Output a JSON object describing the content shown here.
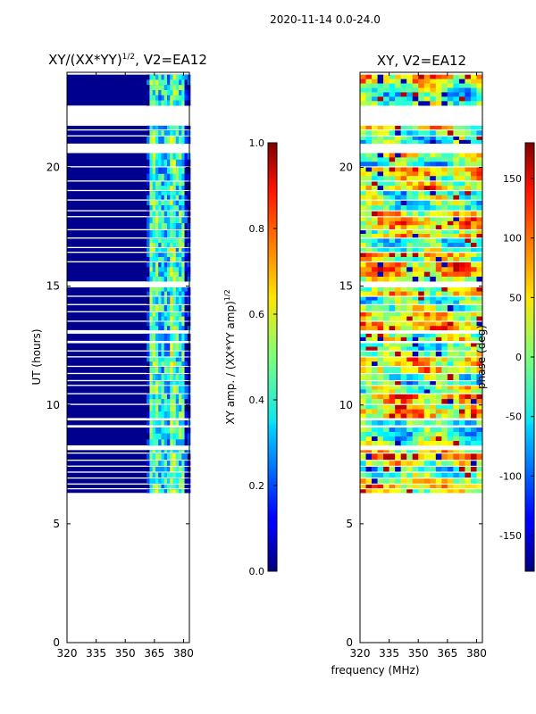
{
  "suptitle": "2020-11-14 0.0-24.0",
  "shared_xlabel": "frequency (MHz)",
  "chart_data": [
    {
      "type": "heatmap",
      "title": "XY/(XX*YY)",
      "title_exponent": "1/2",
      "title_suffix": ", V2=EA12",
      "ylabel": "UT (hours)",
      "xlim": [
        320,
        383
      ],
      "ylim": [
        0,
        24
      ],
      "xticks": [
        320,
        335,
        350,
        365,
        380
      ],
      "yticks": [
        0,
        5,
        10,
        15,
        20
      ],
      "data_rows": [
        {
          "t0": 6.3,
          "t1": 6.45
        },
        {
          "t0": 6.5,
          "t1": 6.65
        },
        {
          "t0": 6.7,
          "t1": 6.9
        },
        {
          "t0": 6.95,
          "t1": 7.15
        },
        {
          "t0": 7.2,
          "t1": 7.4
        },
        {
          "t0": 7.45,
          "t1": 7.65
        },
        {
          "t0": 7.7,
          "t1": 7.95
        },
        {
          "t0": 8.0,
          "t1": 8.1
        },
        {
          "t0": 8.3,
          "t1": 9.05
        },
        {
          "t0": 9.15,
          "t1": 9.35
        },
        {
          "t0": 9.45,
          "t1": 10.0
        },
        {
          "t0": 10.05,
          "t1": 10.45
        },
        {
          "t0": 10.5,
          "t1": 10.8
        },
        {
          "t0": 10.85,
          "t1": 11.0
        },
        {
          "t0": 11.05,
          "t1": 11.3
        },
        {
          "t0": 11.35,
          "t1": 11.6
        },
        {
          "t0": 11.65,
          "t1": 12.0
        },
        {
          "t0": 12.05,
          "t1": 12.25
        },
        {
          "t0": 12.3,
          "t1": 12.6
        },
        {
          "t0": 12.7,
          "t1": 13.0
        },
        {
          "t0": 13.15,
          "t1": 13.5
        },
        {
          "t0": 13.55,
          "t1": 13.9
        },
        {
          "t0": 13.95,
          "t1": 14.2
        },
        {
          "t0": 14.25,
          "t1": 14.55
        },
        {
          "t0": 14.6,
          "t1": 14.95
        },
        {
          "t0": 15.2,
          "t1": 16.0
        },
        {
          "t0": 16.05,
          "t1": 16.4
        },
        {
          "t0": 16.45,
          "t1": 16.6
        },
        {
          "t0": 16.65,
          "t1": 17.0
        },
        {
          "t0": 17.05,
          "t1": 17.35
        },
        {
          "t0": 17.4,
          "t1": 17.9
        },
        {
          "t0": 17.95,
          "t1": 18.15
        },
        {
          "t0": 18.2,
          "t1": 18.6
        },
        {
          "t0": 18.65,
          "t1": 19.0
        },
        {
          "t0": 19.05,
          "t1": 19.4
        },
        {
          "t0": 19.45,
          "t1": 20.0
        },
        {
          "t0": 20.05,
          "t1": 20.6
        },
        {
          "t0": 21.0,
          "t1": 21.3
        },
        {
          "t0": 21.35,
          "t1": 21.55
        },
        {
          "t0": 21.6,
          "t1": 21.75
        },
        {
          "t0": 22.6,
          "t1": 23.9
        }
      ],
      "colorbar": {
        "label": "XY amp. / (XX*YY amp)",
        "label_exponent": "1/2",
        "range": [
          0.0,
          1.0
        ],
        "ticks": [
          "0.0",
          "0.2",
          "0.4",
          "0.6",
          "0.8",
          "1.0"
        ]
      }
    },
    {
      "type": "heatmap",
      "title": "XY, V2=EA12",
      "xlim": [
        320,
        383
      ],
      "ylim": [
        0,
        24
      ],
      "xticks": [
        320,
        335,
        350,
        365,
        380
      ],
      "yticks": [
        0,
        5,
        10,
        15,
        20
      ],
      "data_rows": [
        {
          "t0": 6.3,
          "t1": 6.45
        },
        {
          "t0": 6.5,
          "t1": 6.65
        },
        {
          "t0": 6.7,
          "t1": 6.9
        },
        {
          "t0": 6.95,
          "t1": 7.15
        },
        {
          "t0": 7.2,
          "t1": 7.4
        },
        {
          "t0": 7.45,
          "t1": 7.65
        },
        {
          "t0": 7.7,
          "t1": 7.95
        },
        {
          "t0": 8.0,
          "t1": 8.1
        },
        {
          "t0": 8.3,
          "t1": 9.05
        },
        {
          "t0": 9.15,
          "t1": 9.35
        },
        {
          "t0": 9.45,
          "t1": 10.0
        },
        {
          "t0": 10.05,
          "t1": 10.45
        },
        {
          "t0": 10.5,
          "t1": 10.8
        },
        {
          "t0": 10.85,
          "t1": 11.0
        },
        {
          "t0": 11.05,
          "t1": 11.3
        },
        {
          "t0": 11.35,
          "t1": 11.6
        },
        {
          "t0": 11.65,
          "t1": 12.0
        },
        {
          "t0": 12.05,
          "t1": 12.25
        },
        {
          "t0": 12.3,
          "t1": 12.6
        },
        {
          "t0": 12.7,
          "t1": 13.0
        },
        {
          "t0": 13.15,
          "t1": 13.5
        },
        {
          "t0": 13.55,
          "t1": 13.9
        },
        {
          "t0": 13.95,
          "t1": 14.2
        },
        {
          "t0": 14.25,
          "t1": 14.55
        },
        {
          "t0": 14.6,
          "t1": 14.95
        },
        {
          "t0": 15.2,
          "t1": 16.0
        },
        {
          "t0": 16.05,
          "t1": 16.4
        },
        {
          "t0": 16.45,
          "t1": 16.6
        },
        {
          "t0": 16.65,
          "t1": 17.0
        },
        {
          "t0": 17.05,
          "t1": 17.35
        },
        {
          "t0": 17.4,
          "t1": 17.9
        },
        {
          "t0": 17.95,
          "t1": 18.15
        },
        {
          "t0": 18.2,
          "t1": 18.6
        },
        {
          "t0": 18.65,
          "t1": 19.0
        },
        {
          "t0": 19.05,
          "t1": 19.4
        },
        {
          "t0": 19.45,
          "t1": 20.0
        },
        {
          "t0": 20.05,
          "t1": 20.6
        },
        {
          "t0": 21.0,
          "t1": 21.3
        },
        {
          "t0": 21.35,
          "t1": 21.55
        },
        {
          "t0": 21.6,
          "t1": 21.75
        },
        {
          "t0": 22.6,
          "t1": 23.9
        }
      ],
      "colorbar": {
        "label": "phase (deg)",
        "range": [
          -180,
          180
        ],
        "ticks": [
          "-150",
          "-100",
          "-50",
          "0",
          "50",
          "100",
          "150"
        ]
      }
    }
  ]
}
